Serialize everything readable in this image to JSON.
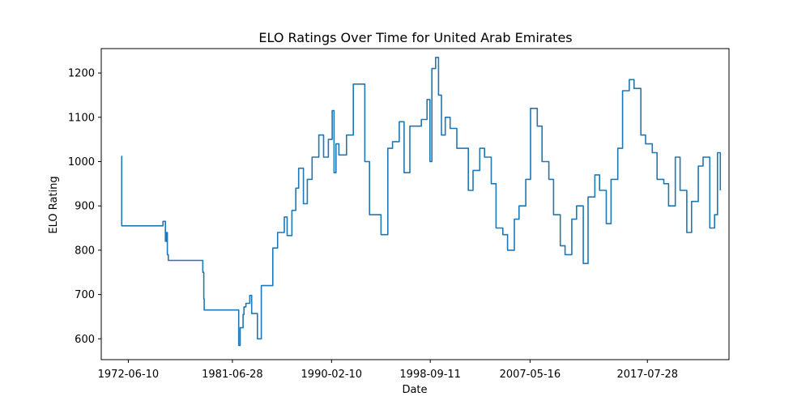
{
  "chart_data": {
    "type": "line",
    "title": "ELO Ratings Over Time for United Arab Emirates",
    "xlabel": "Date",
    "ylabel": "ELO Rating",
    "ylim": [
      553,
      1255
    ],
    "xlim": [
      "1970-02-01",
      "2024-09-01"
    ],
    "grid": false,
    "legend": "none",
    "line_color": "#1f77b4",
    "x_ticks": [
      {
        "label": "1972-06-10",
        "date": "1972-06-10"
      },
      {
        "label": "1981-06-28",
        "date": "1981-06-28"
      },
      {
        "label": "1990-02-10",
        "date": "1990-02-10"
      },
      {
        "label": "1998-09-11",
        "date": "1998-09-11"
      },
      {
        "label": "2007-05-16",
        "date": "2007-05-16"
      },
      {
        "label": "2017-07-28",
        "date": "2017-07-28"
      }
    ],
    "y_ticks": [
      600,
      700,
      800,
      900,
      1000,
      1100,
      1200
    ],
    "series": [
      {
        "x": [
          "1971-11-01",
          "1971-11-15",
          "1975-06-01",
          "1975-06-15",
          "1975-09-01",
          "1975-10-01",
          "1975-11-01",
          "1975-12-01",
          "1978-11-01",
          "1978-12-01",
          "1979-01-01",
          "1979-01-15",
          "1982-01-01",
          "1982-01-15",
          "1982-03-01",
          "1982-06-01",
          "1982-07-01",
          "1982-08-01",
          "1982-09-01",
          "1983-01-01",
          "1983-03-01",
          "1983-06-01",
          "1983-09-01",
          "1984-01-01",
          "1985-01-01",
          "1985-06-01",
          "1986-01-01",
          "1986-04-01",
          "1986-06-01",
          "1986-09-01",
          "1987-01-01",
          "1987-04-01",
          "1987-09-01",
          "1988-01-01",
          "1988-06-01",
          "1989-01-01",
          "1989-06-01",
          "1989-11-01",
          "1990-02-01",
          "1990-03-01",
          "1990-05-01",
          "1990-07-01",
          "1990-10-01",
          "1991-06-01",
          "1992-01-01",
          "1993-01-01",
          "1993-06-01",
          "1994-01-01",
          "1994-06-01",
          "1995-01-01",
          "1995-06-01",
          "1996-01-01",
          "1996-06-01",
          "1996-12-01",
          "1997-06-01",
          "1997-12-01",
          "1998-06-01",
          "1998-09-01",
          "1998-11-01",
          "1999-03-01",
          "1999-06-01",
          "1999-09-01",
          "2000-01-01",
          "2000-06-01",
          "2001-01-01",
          "2001-06-01",
          "2002-01-01",
          "2002-06-01",
          "2003-01-01",
          "2003-06-01",
          "2004-01-01",
          "2004-06-01",
          "2005-01-01",
          "2005-06-01",
          "2006-01-01",
          "2006-06-01",
          "2007-01-01",
          "2007-06-01",
          "2008-01-01",
          "2008-06-01",
          "2009-01-01",
          "2009-06-01",
          "2010-01-01",
          "2010-06-01",
          "2011-01-01",
          "2011-06-01",
          "2012-01-01",
          "2012-06-01",
          "2013-01-01",
          "2013-06-01",
          "2014-01-01",
          "2014-06-01",
          "2015-01-01",
          "2015-06-01",
          "2016-01-01",
          "2016-06-01",
          "2017-01-01",
          "2017-06-01",
          "2018-01-01",
          "2018-06-01",
          "2019-01-01",
          "2019-06-01",
          "2020-01-01",
          "2020-06-01",
          "2021-01-01",
          "2021-06-01",
          "2022-01-01",
          "2022-06-01",
          "2023-01-01",
          "2023-06-01",
          "2023-09-01",
          "2023-12-01"
        ],
        "values": [
          1012,
          855,
          855,
          865,
          820,
          840,
          790,
          777,
          777,
          750,
          690,
          665,
          665,
          585,
          625,
          655,
          672,
          672,
          680,
          698,
          657,
          657,
          600,
          720,
          805,
          840,
          875,
          833,
          833,
          890,
          940,
          985,
          905,
          960,
          1010,
          1060,
          1010,
          1050,
          1050,
          1115,
          975,
          1040,
          1015,
          1060,
          1175,
          1000,
          880,
          880,
          835,
          1030,
          1045,
          1090,
          975,
          1080,
          1080,
          1095,
          1140,
          1000,
          1210,
          1235,
          1150,
          1060,
          1100,
          1075,
          1030,
          1030,
          935,
          980,
          1030,
          1010,
          950,
          850,
          835,
          800,
          870,
          900,
          960,
          1120,
          1080,
          1000,
          960,
          880,
          810,
          790,
          870,
          900,
          770,
          920,
          970,
          935,
          860,
          960,
          1030,
          1160,
          1185,
          1165,
          1060,
          1040,
          1020,
          960,
          950,
          900,
          1010,
          935,
          840,
          910,
          990,
          1010,
          850,
          880,
          1020,
          935
        ]
      }
    ]
  }
}
